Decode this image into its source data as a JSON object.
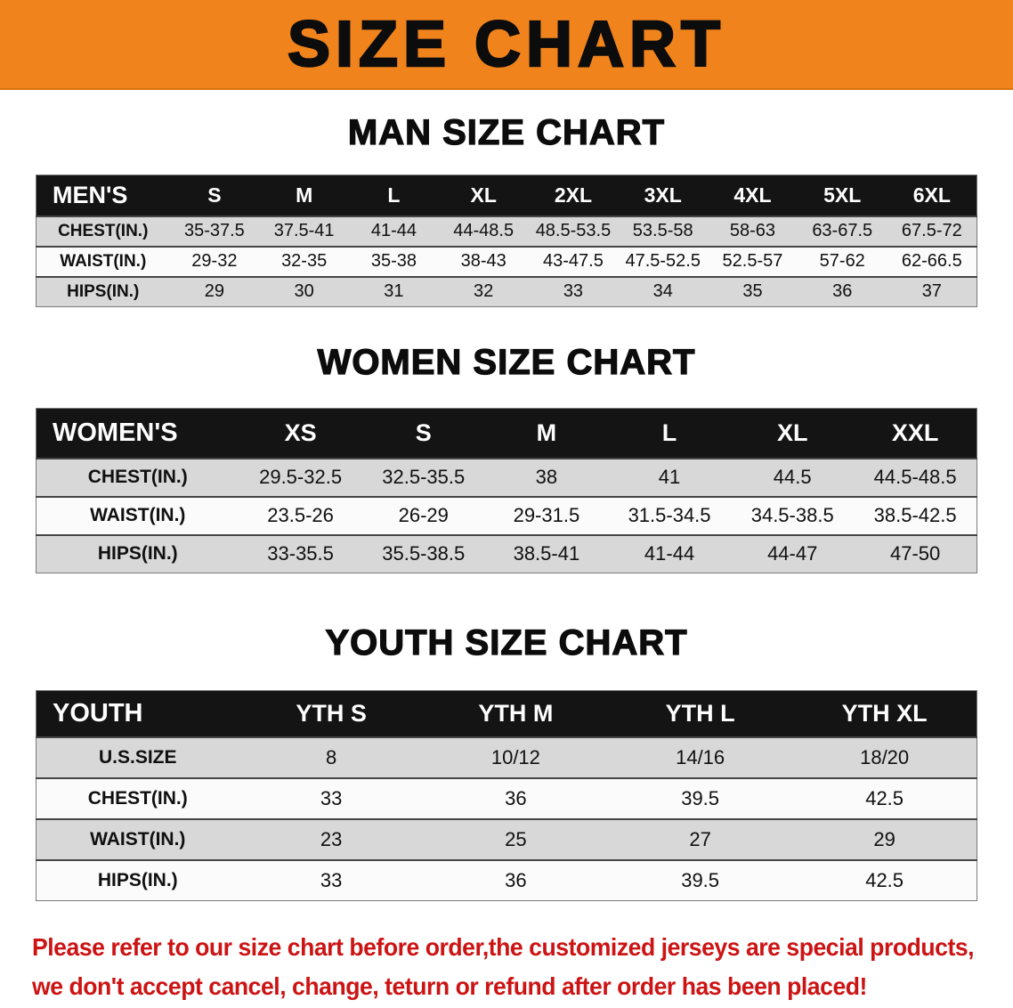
{
  "banner": {
    "title": "SIZE CHART",
    "bg_color": "#f0831c"
  },
  "sections": [
    {
      "heading": "MAN SIZE CHART",
      "table": {
        "name": "mens-size-table",
        "header": [
          "MEN'S",
          "S",
          "M",
          "L",
          "XL",
          "2XL",
          "3XL",
          "4XL",
          "5XL",
          "6XL"
        ],
        "rows": [
          [
            "CHEST(IN.)",
            "35-37.5",
            "37.5-41",
            "41-44",
            "44-48.5",
            "48.5-53.5",
            "53.5-58",
            "58-63",
            "63-67.5",
            "67.5-72"
          ],
          [
            "WAIST(IN.)",
            "29-32",
            "32-35",
            "35-38",
            "38-43",
            "43-47.5",
            "47.5-52.5",
            "52.5-57",
            "57-62",
            "62-66.5"
          ],
          [
            "HIPS(IN.)",
            "29",
            "30",
            "31",
            "32",
            "33",
            "34",
            "35",
            "36",
            "37"
          ]
        ]
      }
    },
    {
      "heading": "WOMEN SIZE CHART",
      "table": {
        "name": "womens-size-table",
        "header": [
          "WOMEN'S",
          "XS",
          "S",
          "M",
          "L",
          "XL",
          "XXL"
        ],
        "rows": [
          [
            "CHEST(IN.)",
            "29.5-32.5",
            "32.5-35.5",
            "38",
            "41",
            "44.5",
            "44.5-48.5"
          ],
          [
            "WAIST(IN.)",
            "23.5-26",
            "26-29",
            "29-31.5",
            "31.5-34.5",
            "34.5-38.5",
            "38.5-42.5"
          ],
          [
            "HIPS(IN.)",
            "33-35.5",
            "35.5-38.5",
            "38.5-41",
            "41-44",
            "44-47",
            "47-50"
          ]
        ]
      }
    },
    {
      "heading": "YOUTH SIZE CHART",
      "table": {
        "name": "youth-size-table",
        "header": [
          "YOUTH",
          "YTH S",
          "YTH M",
          "YTH L",
          "YTH XL"
        ],
        "rows": [
          [
            "U.S.SIZE",
            "8",
            "10/12",
            "14/16",
            "18/20"
          ],
          [
            "CHEST(IN.)",
            "33",
            "36",
            "39.5",
            "42.5"
          ],
          [
            "WAIST(IN.)",
            "23",
            "25",
            "27",
            "29"
          ],
          [
            "HIPS(IN.)",
            "33",
            "36",
            "39.5",
            "42.5"
          ]
        ]
      }
    }
  ],
  "footer": {
    "line1": "Please refer to our size chart before order,the customized jerseys are special products,",
    "line2": "we don't accept cancel, change, teturn or refund after order has been placed!",
    "text_color": "#cc1414"
  }
}
